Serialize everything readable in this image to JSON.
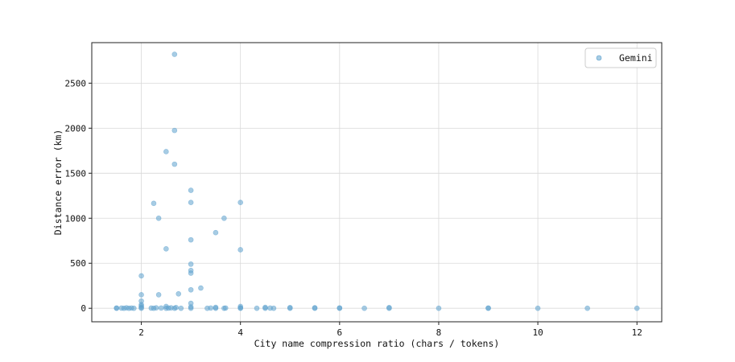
{
  "chart_data": {
    "type": "scatter",
    "xlabel": "City name compression ratio (chars / tokens)",
    "ylabel": "Distance error (km)",
    "xlim": [
      1.0,
      12.5
    ],
    "ylim": [
      -150,
      2950
    ],
    "xticks": [
      2,
      4,
      6,
      8,
      10,
      12
    ],
    "yticks": [
      0,
      500,
      1000,
      1500,
      2000,
      2500
    ],
    "grid": true,
    "legend_position": "top-right",
    "series": [
      {
        "name": "Gemini",
        "color": "#5fa2ce",
        "points": [
          [
            1.5,
            0
          ],
          [
            1.5,
            3
          ],
          [
            1.6,
            2
          ],
          [
            1.65,
            0
          ],
          [
            1.7,
            5
          ],
          [
            1.75,
            0
          ],
          [
            1.8,
            3
          ],
          [
            1.85,
            0
          ],
          [
            2.0,
            0
          ],
          [
            2.0,
            10
          ],
          [
            2.0,
            25
          ],
          [
            2.0,
            40
          ],
          [
            2.0,
            80
          ],
          [
            2.0,
            150
          ],
          [
            2.0,
            360
          ],
          [
            2.2,
            2
          ],
          [
            2.25,
            0
          ],
          [
            2.25,
            1165
          ],
          [
            2.3,
            5
          ],
          [
            2.35,
            1000
          ],
          [
            2.35,
            150
          ],
          [
            2.4,
            3
          ],
          [
            2.5,
            0
          ],
          [
            2.5,
            20
          ],
          [
            2.5,
            660
          ],
          [
            2.5,
            1740
          ],
          [
            2.55,
            2
          ],
          [
            2.6,
            5
          ],
          [
            2.67,
            0
          ],
          [
            2.67,
            1600
          ],
          [
            2.67,
            1975
          ],
          [
            2.67,
            2820
          ],
          [
            2.7,
            8
          ],
          [
            2.75,
            160
          ],
          [
            2.8,
            0
          ],
          [
            3.0,
            0
          ],
          [
            3.0,
            15
          ],
          [
            3.0,
            55
          ],
          [
            3.0,
            205
          ],
          [
            3.0,
            390
          ],
          [
            3.0,
            420
          ],
          [
            3.0,
            490
          ],
          [
            3.0,
            760
          ],
          [
            3.0,
            1175
          ],
          [
            3.0,
            1310
          ],
          [
            3.2,
            225
          ],
          [
            3.33,
            0
          ],
          [
            3.4,
            3
          ],
          [
            3.5,
            0
          ],
          [
            3.5,
            10
          ],
          [
            3.5,
            840
          ],
          [
            3.67,
            0
          ],
          [
            3.67,
            1000
          ],
          [
            3.7,
            3
          ],
          [
            4.0,
            0
          ],
          [
            4.0,
            5
          ],
          [
            4.0,
            20
          ],
          [
            4.0,
            650
          ],
          [
            4.0,
            1175
          ],
          [
            4.33,
            0
          ],
          [
            4.5,
            0
          ],
          [
            4.5,
            10
          ],
          [
            4.6,
            2
          ],
          [
            4.67,
            0
          ],
          [
            5.0,
            0
          ],
          [
            5.0,
            8
          ],
          [
            5.5,
            0
          ],
          [
            5.5,
            6
          ],
          [
            6.0,
            0
          ],
          [
            6.0,
            4
          ],
          [
            6.5,
            0
          ],
          [
            7.0,
            0
          ],
          [
            7.0,
            8
          ],
          [
            8.0,
            0
          ],
          [
            9.0,
            0
          ],
          [
            9.0,
            3
          ],
          [
            10.0,
            0
          ],
          [
            11.0,
            0
          ],
          [
            12.0,
            0
          ]
        ]
      }
    ]
  }
}
